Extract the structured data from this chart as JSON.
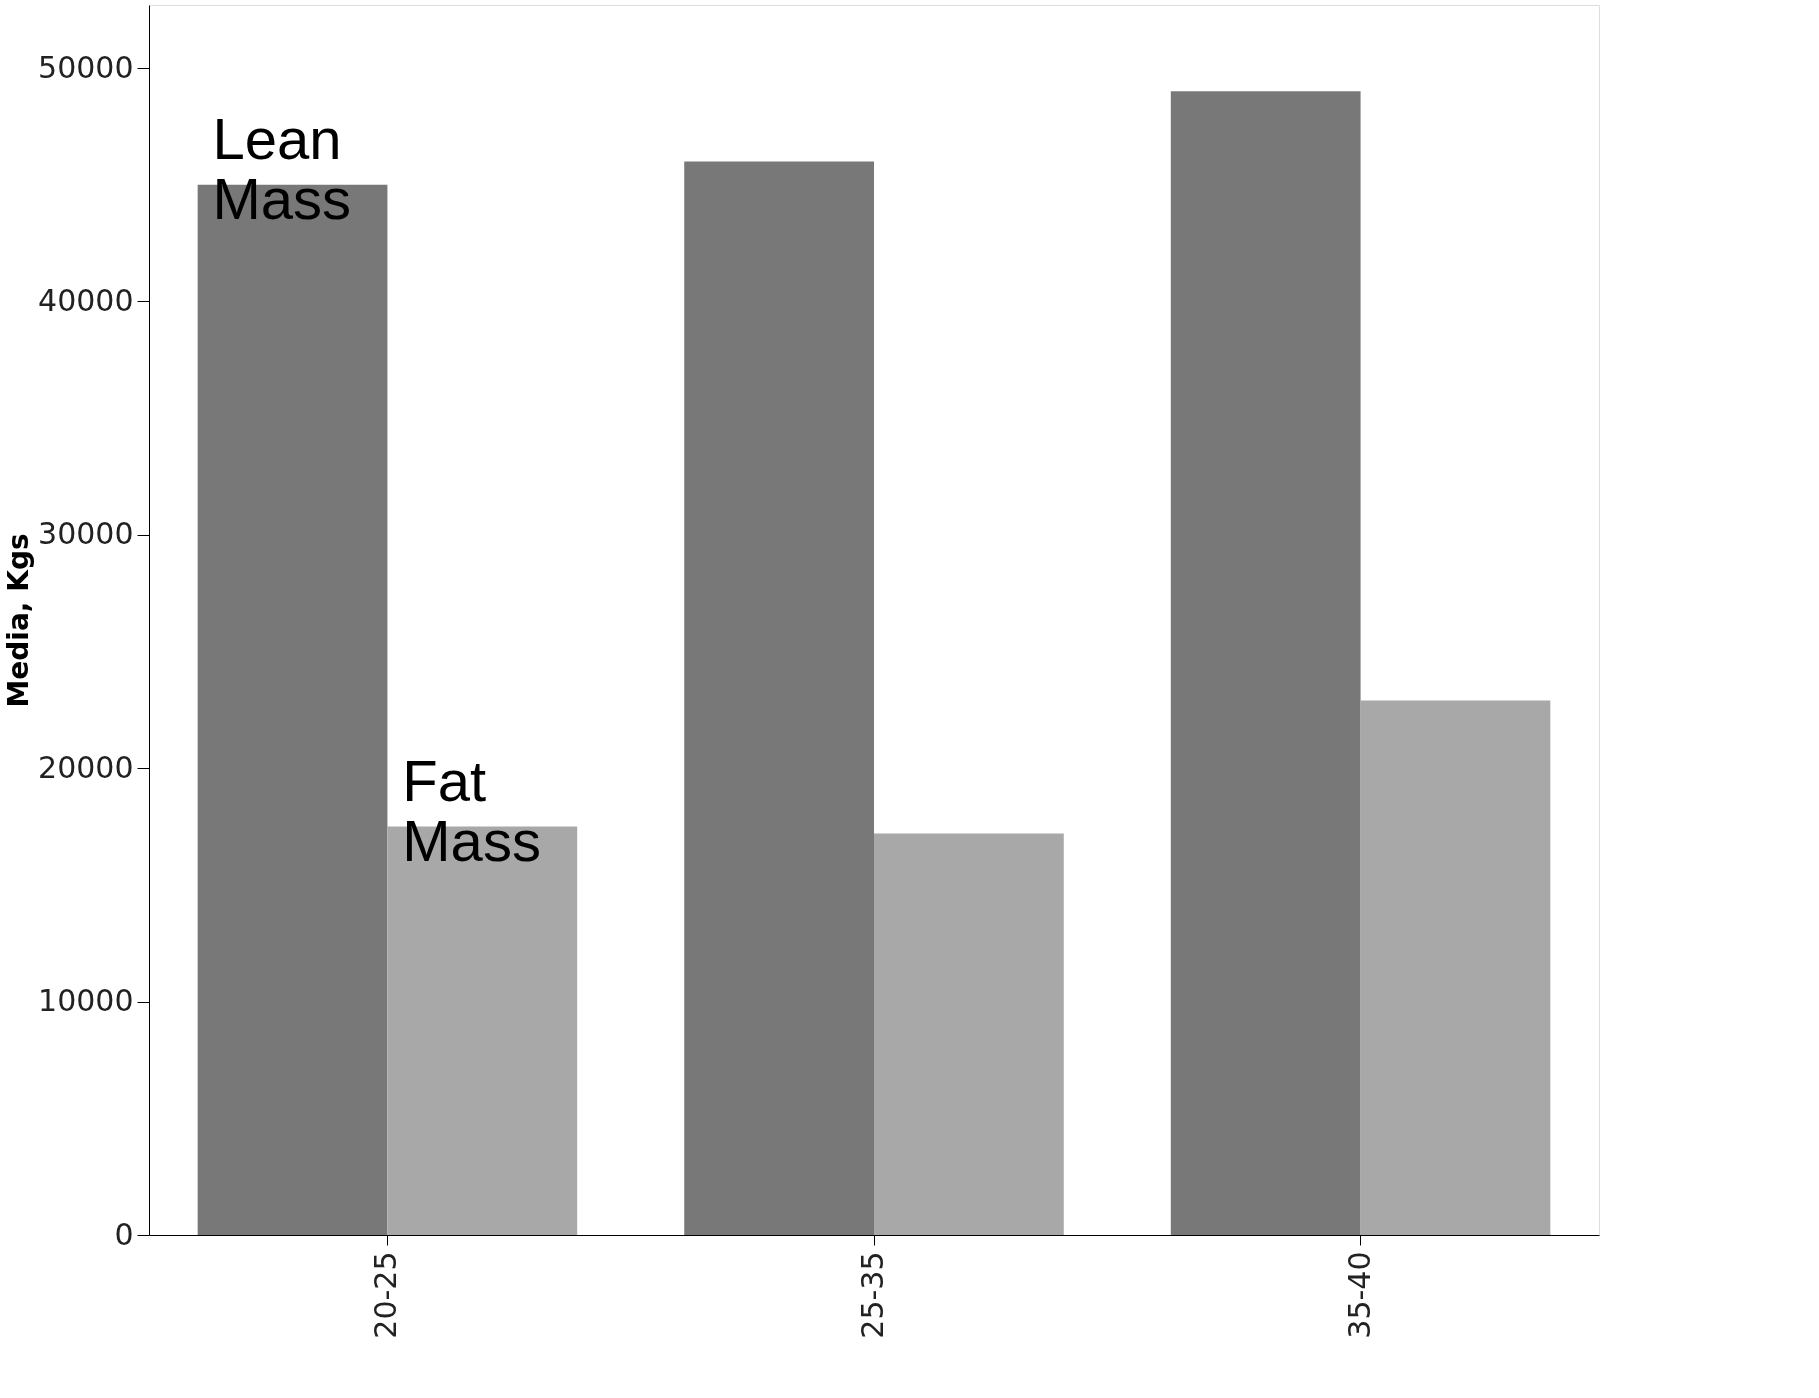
{
  "chart_data": {
    "type": "bar",
    "ylabel": "Media, Kgs",
    "categories": [
      "20-25",
      "25-35",
      "35-40"
    ],
    "series": [
      {
        "name": "Lean Mass",
        "color": "#787878",
        "values": [
          45000,
          46000,
          49000
        ]
      },
      {
        "name": "Fat Mass",
        "color": "#a8a8a8",
        "values": [
          17500,
          17200,
          22900
        ]
      }
    ],
    "ylim": [
      0,
      52700
    ],
    "yticks": [
      0,
      10000,
      20000,
      30000,
      40000,
      50000
    ],
    "grid": false,
    "legend": false
  }
}
